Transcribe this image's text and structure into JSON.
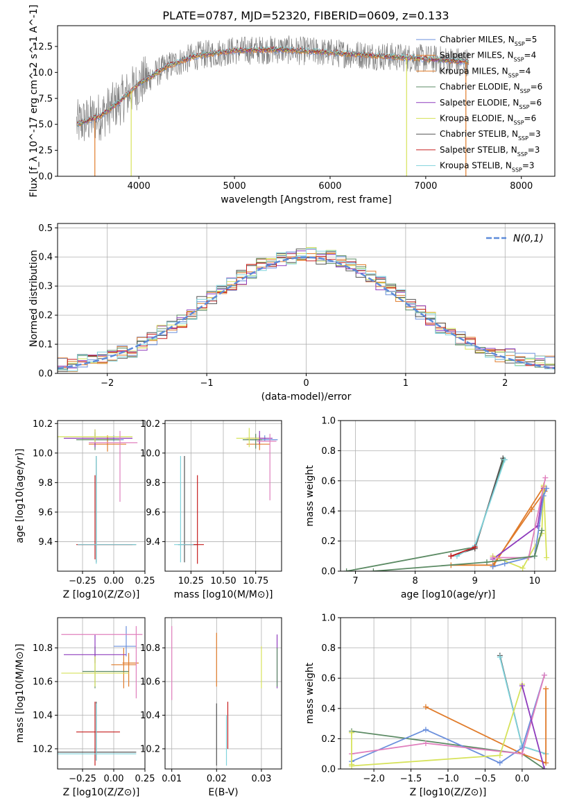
{
  "figure_title": "PLATE=0787, MJD=52320, FIBERID=0609, z=0.133",
  "colors": {
    "Chabrier MILES": "#6a8fdc",
    "Salpeter MILES": "#e07b2a",
    "Kroupa MILES": "#e07b2a",
    "Chabrier ELODIE": "#5b8a63",
    "Salpeter ELODIE": "#8e3bbd",
    "Kroupa ELODIE": "#d6e25a",
    "Chabrier STELIB": "#555555",
    "Salpeter STELIB": "#c61d1d",
    "Kroupa STELIB": "#7fd3dc",
    "data": "#7f7f7f",
    "pink": "#e07fbd",
    "normal": "#5d8bd9"
  },
  "legend_spectrum": [
    {
      "name": "Chabrier MILES",
      "n": "5",
      "color": "#6a8fdc"
    },
    {
      "name": "Salpeter MILES",
      "n": "4",
      "color": "#e07b2a"
    },
    {
      "name": "Kroupa MILES",
      "n": "4",
      "color": "#e07b2a"
    },
    {
      "name": "Chabrier ELODIE",
      "n": "6",
      "color": "#5b8a63"
    },
    {
      "name": "Salpeter ELODIE",
      "n": "6",
      "color": "#8e3bbd"
    },
    {
      "name": "Kroupa ELODIE",
      "n": "6",
      "color": "#d6e25a"
    },
    {
      "name": "Chabrier STELIB",
      "n": "3",
      "color": "#555555"
    },
    {
      "name": "Salpeter STELIB",
      "n": "3",
      "color": "#c61d1d"
    },
    {
      "name": "Kroupa STELIB",
      "n": "3",
      "color": "#7fd3dc"
    }
  ],
  "chart_data": [
    {
      "type": "line",
      "panel": "spectrum",
      "title": "PLATE=0787, MJD=52320, FIBERID=0609, z=0.133",
      "xlabel": "wavelength [Angstrom, rest frame]",
      "ylabel": "Flux [f_λ 10^-17 erg cm^-2 s^-1 A^-1]",
      "xlim": [
        3150,
        8350
      ],
      "ylim": [
        0,
        14.5
      ],
      "xticks": [
        "4000",
        "5000",
        "6000",
        "7000",
        "8000"
      ],
      "yticks": [
        "0.0",
        "2.5",
        "5.0",
        "7.5",
        "10.0",
        "12.5"
      ],
      "continuum": {
        "x": [
          3350,
          3600,
          3800,
          4000,
          4300,
          4600,
          5000,
          5500,
          6000,
          6500,
          7000,
          7450
        ],
        "y": [
          5.0,
          5.8,
          7.2,
          8.9,
          10.6,
          11.6,
          12.1,
          12.2,
          11.9,
          11.6,
          11.3,
          11.0
        ]
      },
      "grid": false
    },
    {
      "type": "line",
      "panel": "residual_distribution",
      "xlabel": "(data-model)/error",
      "ylabel": "Normed distribution",
      "xlim": [
        -2.5,
        2.5
      ],
      "ylim": [
        0,
        0.515
      ],
      "xticks": [
        "−2",
        "−1",
        "0",
        "1",
        "2"
      ],
      "yticks": [
        "0.0",
        "0.1",
        "0.2",
        "0.3",
        "0.4",
        "0.5"
      ],
      "legend": "N(0,1)",
      "legend_position": "top-right",
      "grid": true,
      "bin_centers": [
        -2.45,
        -2.35,
        -2.25,
        -2.15,
        -2.05,
        -1.95,
        -1.85,
        -1.75,
        -1.65,
        -1.55,
        -1.45,
        -1.35,
        -1.25,
        -1.15,
        -1.05,
        -0.95,
        -0.85,
        -0.75,
        -0.65,
        -0.55,
        -0.45,
        -0.35,
        -0.25,
        -0.15,
        -0.05,
        0.05,
        0.15,
        0.25,
        0.35,
        0.45,
        0.55,
        0.65,
        0.75,
        0.85,
        0.95,
        1.05,
        1.15,
        1.25,
        1.35,
        1.45,
        1.55,
        1.65,
        1.75,
        1.85,
        1.95,
        2.05,
        2.15,
        2.25,
        2.35,
        2.45
      ],
      "base_heights": [
        0.03,
        0.03,
        0.04,
        0.04,
        0.05,
        0.06,
        0.07,
        0.08,
        0.1,
        0.12,
        0.14,
        0.16,
        0.18,
        0.21,
        0.24,
        0.26,
        0.29,
        0.31,
        0.33,
        0.35,
        0.37,
        0.38,
        0.39,
        0.4,
        0.41,
        0.41,
        0.4,
        0.4,
        0.39,
        0.37,
        0.35,
        0.33,
        0.31,
        0.29,
        0.27,
        0.24,
        0.21,
        0.19,
        0.16,
        0.14,
        0.12,
        0.1,
        0.08,
        0.07,
        0.06,
        0.06,
        0.05,
        0.05,
        0.04,
        0.04
      ]
    },
    {
      "type": "scatter",
      "panel": "age_vs_Z",
      "xlabel": "Z [log10(Z/Z⊙)]",
      "ylabel": "age [log10(age/yr)]",
      "xlim": [
        -0.45,
        0.25
      ],
      "ylim": [
        9.2,
        10.22
      ],
      "xticks": [
        "−0.25",
        "0.00",
        "0.25"
      ],
      "yticks": [
        "9.4",
        "9.6",
        "9.8",
        "10.0",
        "10.2"
      ],
      "grid": true,
      "points": [
        {
          "x": 0.0,
          "y": 10.09,
          "xerr": [
            0.15,
            0.08
          ],
          "yerr": [
            0.01,
            0.03
          ],
          "color": "#6a8fdc"
        },
        {
          "x": -0.05,
          "y": 10.1,
          "xerr": [
            0.2,
            0.05
          ],
          "yerr": [
            0.02,
            0.02
          ],
          "color": "#e07b2a"
        },
        {
          "x": -0.05,
          "y": 10.06,
          "xerr": [
            0.15,
            0.15
          ],
          "yerr": [
            0.05,
            0.05
          ],
          "color": "#e07b2a"
        },
        {
          "x": -0.15,
          "y": 10.09,
          "xerr": [
            0.15,
            0.2
          ],
          "yerr": [
            0.07,
            0.05
          ],
          "color": "#5b8a63"
        },
        {
          "x": -0.15,
          "y": 10.1,
          "xerr": [
            0.25,
            0.3
          ],
          "yerr": [
            0.06,
            0.06
          ],
          "color": "#8e3bbd"
        },
        {
          "x": -0.15,
          "y": 10.11,
          "xerr": [
            0.3,
            0.3
          ],
          "yerr": [
            0.04,
            0.05
          ],
          "color": "#d6e25a"
        },
        {
          "x": -0.14,
          "y": 9.38,
          "xerr": [
            0.15,
            0.32
          ],
          "yerr": [
            0.12,
            0.6
          ],
          "color": "#555555"
        },
        {
          "x": -0.15,
          "y": 9.38,
          "xerr": [
            0.15,
            0.3
          ],
          "yerr": [
            0.1,
            0.47
          ],
          "color": "#c61d1d"
        },
        {
          "x": -0.14,
          "y": 9.38,
          "xerr": [
            0.15,
            0.32
          ],
          "yerr": [
            0.13,
            0.6
          ],
          "color": "#7fd3dc"
        },
        {
          "x": 0.05,
          "y": 10.07,
          "xerr": [
            0.25,
            0.14
          ],
          "yerr": [
            0.4,
            0.08
          ],
          "color": "#e07fbd"
        }
      ]
    },
    {
      "type": "scatter",
      "panel": "age_vs_mass",
      "xlabel": "mass [log10(M/M⊙)]",
      "ylabel": "",
      "xlim": [
        10.05,
        10.95
      ],
      "ylim": [
        9.2,
        10.22
      ],
      "xticks": [
        "10.25",
        "10.50",
        "10.75"
      ],
      "yticks": [
        "9.4",
        "9.6",
        "9.8",
        "10.0",
        "10.2"
      ],
      "grid": true,
      "points": [
        {
          "x": 10.82,
          "y": 10.09,
          "xerr": [
            0.12,
            0.1
          ],
          "yerr": [
            0.01,
            0.03
          ],
          "color": "#6a8fdc"
        },
        {
          "x": 10.78,
          "y": 10.1,
          "xerr": [
            0.1,
            0.05
          ],
          "yerr": [
            0.04,
            0.02
          ],
          "color": "#e07b2a"
        },
        {
          "x": 10.78,
          "y": 10.06,
          "xerr": [
            0.1,
            0.08
          ],
          "yerr": [
            0.04,
            0.05
          ],
          "color": "#e07b2a"
        },
        {
          "x": 10.75,
          "y": 10.09,
          "xerr": [
            0.1,
            0.05
          ],
          "yerr": [
            0.06,
            0.04
          ],
          "color": "#5b8a63"
        },
        {
          "x": 10.78,
          "y": 10.1,
          "xerr": [
            0.1,
            0.1
          ],
          "yerr": [
            0.04,
            0.05
          ],
          "color": "#8e3bbd"
        },
        {
          "x": 10.7,
          "y": 10.1,
          "xerr": [
            0.1,
            0.08
          ],
          "yerr": [
            0.06,
            0.07
          ],
          "color": "#d6e25a"
        },
        {
          "x": 10.2,
          "y": 9.38,
          "xerr": [
            0.05,
            0.1
          ],
          "yerr": [
            0.12,
            0.6
          ],
          "color": "#555555"
        },
        {
          "x": 10.3,
          "y": 9.38,
          "xerr": [
            0.1,
            0.05
          ],
          "yerr": [
            0.13,
            0.47
          ],
          "color": "#c61d1d"
        },
        {
          "x": 10.17,
          "y": 9.38,
          "xerr": [
            0.05,
            0.1
          ],
          "yerr": [
            0.12,
            0.6
          ],
          "color": "#7fd3dc"
        },
        {
          "x": 10.86,
          "y": 10.08,
          "xerr": [
            0.1,
            0.05
          ],
          "yerr": [
            0.4,
            0.05
          ],
          "color": "#e07fbd"
        }
      ]
    },
    {
      "type": "line",
      "panel": "mass_weight_vs_age",
      "xlabel": "age [log10(age/yr)]",
      "ylabel": "mass weight",
      "xlim": [
        6.75,
        10.35
      ],
      "ylim": [
        0,
        1.0
      ],
      "xticks": [
        "7",
        "8",
        "9",
        "10"
      ],
      "yticks": [
        "0.0",
        "0.2",
        "0.4",
        "0.6",
        "0.8",
        "1.0"
      ],
      "grid": true,
      "series": [
        {
          "color": "#5b8a63",
          "x": [
            6.85,
            9.0,
            9.48
          ],
          "y": [
            0.0,
            0.16,
            0.74
          ]
        },
        {
          "color": "#555555",
          "x": [
            8.6,
            9.0,
            9.47
          ],
          "y": [
            0.1,
            0.15,
            0.75
          ]
        },
        {
          "color": "#7fd3dc",
          "x": [
            8.7,
            9.0,
            9.5
          ],
          "y": [
            0.1,
            0.17,
            0.74
          ]
        },
        {
          "color": "#c61d1d",
          "x": [
            8.6,
            9.0
          ],
          "y": [
            0.1,
            0.16
          ]
        },
        {
          "color": "#e07b2a",
          "x": [
            8.6,
            9.3,
            9.95,
            10.17
          ],
          "y": [
            0.04,
            0.04,
            0.41,
            0.53
          ]
        },
        {
          "color": "#e07b2a",
          "x": [
            9.3,
            10.15
          ],
          "y": [
            0.03,
            0.56
          ]
        },
        {
          "color": "#8e3bbd",
          "x": [
            9.3,
            10.05,
            10.15
          ],
          "y": [
            0.08,
            0.3,
            0.55
          ]
        },
        {
          "color": "#d6e25a",
          "x": [
            9.3,
            9.8,
            10.12,
            10.15,
            10.2
          ],
          "y": [
            0.1,
            0.02,
            0.25,
            0.57,
            0.09
          ]
        },
        {
          "color": "#6a8fdc",
          "x": [
            9.3,
            9.5,
            10.0,
            10.15,
            10.2
          ],
          "y": [
            0.03,
            0.05,
            0.1,
            0.5,
            0.55
          ]
        },
        {
          "color": "#e07fbd",
          "x": [
            9.3,
            9.9,
            10.18
          ],
          "y": [
            0.09,
            0.09,
            0.62
          ]
        },
        {
          "color": "#5b8a63",
          "x": [
            7.3,
            9.2,
            10.0,
            10.12
          ],
          "y": [
            0.0,
            0.06,
            0.1,
            0.27
          ]
        }
      ]
    },
    {
      "type": "scatter",
      "panel": "mass_vs_Z",
      "xlabel": "Z [log10(Z/Z⊙)]",
      "ylabel": "mass [log10(M/M⊙)]",
      "xlim": [
        -0.45,
        0.25
      ],
      "ylim": [
        10.08,
        10.98
      ],
      "xticks": [
        "−0.25",
        "0.00",
        "0.25"
      ],
      "yticks": [
        "10.2",
        "10.4",
        "10.6",
        "10.8"
      ],
      "grid": true,
      "points": [
        {
          "x": 0.1,
          "y": 10.81,
          "xerr": [
            0.1,
            0.08
          ],
          "yerr": [
            0.06,
            0.12
          ],
          "color": "#6a8fdc"
        },
        {
          "x": 0.12,
          "y": 10.71,
          "xerr": [
            0.05,
            0.08
          ],
          "yerr": [
            0.14,
            0.06
          ],
          "color": "#e07b2a"
        },
        {
          "x": 0.08,
          "y": 10.7,
          "xerr": [
            0.1,
            0.1
          ],
          "yerr": [
            0.14,
            0.1
          ],
          "color": "#e07b2a"
        },
        {
          "x": -0.15,
          "y": 10.66,
          "xerr": [
            0.1,
            0.27
          ],
          "yerr": [
            0.1,
            0.15
          ],
          "color": "#5b8a63"
        },
        {
          "x": -0.15,
          "y": 10.76,
          "xerr": [
            0.25,
            0.25
          ],
          "yerr": [
            0.05,
            0.12
          ],
          "color": "#8e3bbd"
        },
        {
          "x": -0.15,
          "y": 10.65,
          "xerr": [
            0.27,
            0.27
          ],
          "yerr": [
            0.08,
            0.1
          ],
          "color": "#d6e25a"
        },
        {
          "x": -0.14,
          "y": 10.18,
          "xerr": [
            0.32,
            0.32
          ],
          "yerr": [
            0.05,
            0.3
          ],
          "color": "#555555"
        },
        {
          "x": -0.15,
          "y": 10.3,
          "xerr": [
            0.15,
            0.2
          ],
          "yerr": [
            0.2,
            0.18
          ],
          "color": "#c61d1d"
        },
        {
          "x": -0.14,
          "y": 10.17,
          "xerr": [
            0.32,
            0.32
          ],
          "yerr": [
            0.04,
            0.3
          ],
          "color": "#7fd3dc"
        },
        {
          "x": 0.18,
          "y": 10.88,
          "xerr": [
            0.6,
            0.05
          ],
          "yerr": [
            0.38,
            0.05
          ],
          "color": "#e07fbd"
        }
      ]
    },
    {
      "type": "scatter",
      "panel": "mass_vs_ebv",
      "xlabel": "E(B-V)",
      "ylabel": "",
      "xlim": [
        0.0085,
        0.0345
      ],
      "ylim": [
        10.08,
        10.98
      ],
      "xticks": [
        "0.01",
        "0.02",
        "0.03"
      ],
      "yticks": [
        "10.2",
        "10.4",
        "10.6",
        "10.8"
      ],
      "grid": true,
      "points": [
        {
          "x": 0.01,
          "y": 10.81,
          "yerr": [
            0.32,
            0.12
          ],
          "color": "#e07fbd"
        },
        {
          "x": 0.02,
          "y": 10.71,
          "yerr": [
            0.14,
            0.18
          ],
          "color": "#e07b2a"
        },
        {
          "x": 0.03,
          "y": 10.66,
          "yerr": [
            0.1,
            0.15
          ],
          "color": "#d6e25a"
        },
        {
          "x": 0.0335,
          "y": 10.76,
          "yerr": [
            0.2,
            0.12
          ],
          "color": "#8e3bbd"
        },
        {
          "x": 0.0335,
          "y": 10.7,
          "yerr": [
            0.13,
            0.1
          ],
          "color": "#5b8a63"
        },
        {
          "x": 0.02,
          "y": 10.3,
          "yerr": [
            0.2,
            0.17
          ],
          "color": "#555555"
        },
        {
          "x": 0.0225,
          "y": 10.3,
          "yerr": [
            0.1,
            0.18
          ],
          "color": "#c61d1d"
        },
        {
          "x": 0.0222,
          "y": 10.2,
          "yerr": [
            0.1,
            0.2
          ],
          "color": "#7fd3dc"
        }
      ]
    },
    {
      "type": "line",
      "panel": "mass_weight_vs_Z",
      "xlabel": "Z [log10(Z/Z⊙)]",
      "ylabel": "mass weight",
      "xlim": [
        -2.45,
        0.45
      ],
      "ylim": [
        0,
        1.0
      ],
      "xticks": [
        "−2.0",
        "−1.5",
        "−1.0",
        "−0.5",
        "0.0"
      ],
      "yticks": [
        "0.0",
        "0.2",
        "0.4",
        "0.6",
        "0.8",
        "1.0"
      ],
      "grid": true,
      "series": [
        {
          "color": "#5b8a63",
          "x": [
            -2.3,
            0.0,
            0.3
          ],
          "y": [
            0.25,
            0.1,
            0.0
          ]
        },
        {
          "color": "#555555",
          "x": [
            -0.3,
            0.0,
            0.32
          ],
          "y": [
            0.75,
            0.15,
            0.1
          ]
        },
        {
          "color": "#7fd3dc",
          "x": [
            -0.3,
            0.0,
            0.32
          ],
          "y": [
            0.74,
            0.15,
            0.1
          ]
        },
        {
          "color": "#e07b2a",
          "x": [
            -1.3,
            0.0,
            0.32,
            0.32
          ],
          "y": [
            0.41,
            0.1,
            0.04,
            0.53
          ]
        },
        {
          "color": "#6a8fdc",
          "x": [
            -2.3,
            -1.3,
            -0.3,
            0.0,
            0.3
          ],
          "y": [
            0.05,
            0.26,
            0.04,
            0.14,
            0.62
          ]
        },
        {
          "color": "#e07fbd",
          "x": [
            -2.3,
            -1.3,
            0.0,
            0.3
          ],
          "y": [
            0.1,
            0.17,
            0.1,
            0.62
          ]
        },
        {
          "color": "#d6e25a",
          "x": [
            -2.3,
            -0.3,
            0.0
          ],
          "y": [
            0.02,
            0.09,
            0.56
          ]
        },
        {
          "color": "#d6e25a",
          "x": [
            -2.3,
            -2.3
          ],
          "y": [
            0.03,
            0.24
          ]
        },
        {
          "color": "#8e3bbd",
          "x": [
            0.0,
            0.3
          ],
          "y": [
            0.55,
            0.0
          ]
        }
      ]
    }
  ]
}
